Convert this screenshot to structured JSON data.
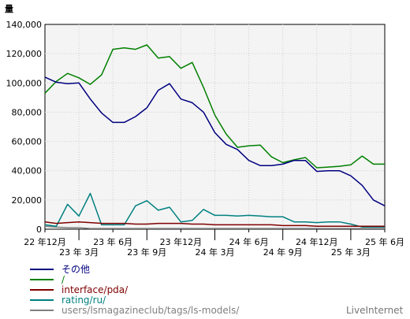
{
  "chart_data": {
    "type": "line",
    "ylabel": "量",
    "ylim": [
      0,
      140000
    ],
    "y_ticks": [
      "0",
      "20,000",
      "40,000",
      "60,000",
      "80,000",
      "100,000",
      "120,000",
      "140,000"
    ],
    "y_tick_values": [
      0,
      20000,
      40000,
      60000,
      80000,
      100000,
      120000,
      140000
    ],
    "x_ticks": [
      {
        "label": "22 年12月",
        "index": 0,
        "row": 0
      },
      {
        "label": "23 年 3月",
        "index": 3,
        "row": 1
      },
      {
        "label": "23 年 6月",
        "index": 6,
        "row": 0
      },
      {
        "label": "23 年 9月",
        "index": 9,
        "row": 1
      },
      {
        "label": "23 年12月",
        "index": 12,
        "row": 0
      },
      {
        "label": "24 年 3月",
        "index": 15,
        "row": 1
      },
      {
        "label": "24 年 6月",
        "index": 18,
        "row": 0
      },
      {
        "label": "24 年 9月",
        "index": 21,
        "row": 1
      },
      {
        "label": "24 年12月",
        "index": 24,
        "row": 0
      },
      {
        "label": "25 年 3月",
        "index": 27,
        "row": 1
      },
      {
        "label": "25 年 6月",
        "index": 30,
        "row": 0
      }
    ],
    "grid": true,
    "legend_placement": "bottom-left",
    "series": [
      {
        "name": "その他",
        "color": "#000080",
        "values": [
          104000,
          100500,
          99500,
          100000,
          89000,
          79500,
          73000,
          73000,
          77000,
          83000,
          95000,
          99500,
          89000,
          86500,
          80000,
          66000,
          58000,
          54500,
          47000,
          43500,
          43500,
          44500,
          47000,
          47000,
          39500,
          40000,
          40000,
          36500,
          30000,
          20000,
          16000
        ]
      },
      {
        "name": "/",
        "color": "#008000",
        "values": [
          93000,
          101000,
          106500,
          103500,
          99000,
          105500,
          123000,
          124000,
          123000,
          126000,
          117000,
          118000,
          110000,
          114000,
          97000,
          78000,
          65000,
          56000,
          57000,
          57500,
          49500,
          45500,
          47500,
          49000,
          42000,
          42500,
          43000,
          44000,
          50000,
          44500,
          44500
        ]
      },
      {
        "name": "interface/pda/",
        "color": "#800000",
        "values": [
          5000,
          4000,
          4500,
          5000,
          4500,
          4000,
          4000,
          4000,
          3500,
          3500,
          4000,
          4000,
          4000,
          3500,
          3500,
          3000,
          3000,
          3000,
          3000,
          3000,
          3000,
          2500,
          2500,
          2500,
          2000,
          2000,
          2000,
          2000,
          2000,
          2000,
          2000
        ]
      },
      {
        "name": "rating/ru/",
        "color": "#008080",
        "values": [
          3000,
          2000,
          17000,
          9000,
          24500,
          3000,
          3000,
          3000,
          16000,
          19500,
          13000,
          15000,
          5000,
          6000,
          13500,
          9500,
          9500,
          9000,
          9500,
          9000,
          8500,
          8500,
          5000,
          5000,
          4500,
          5000,
          5000,
          3500,
          1500,
          1500,
          1500
        ]
      },
      {
        "name": "users/lsmagazineclub/tags/ls-models/",
        "color": "#808080",
        "values": [
          2000,
          1500,
          1000,
          1000,
          500,
          500,
          500,
          500,
          500,
          500,
          500,
          500,
          500,
          500,
          500,
          500,
          500,
          500,
          500,
          500,
          500,
          500,
          500,
          500,
          500,
          500,
          500,
          500,
          500,
          500,
          500
        ]
      }
    ]
  },
  "watermark": "LiveInternet"
}
